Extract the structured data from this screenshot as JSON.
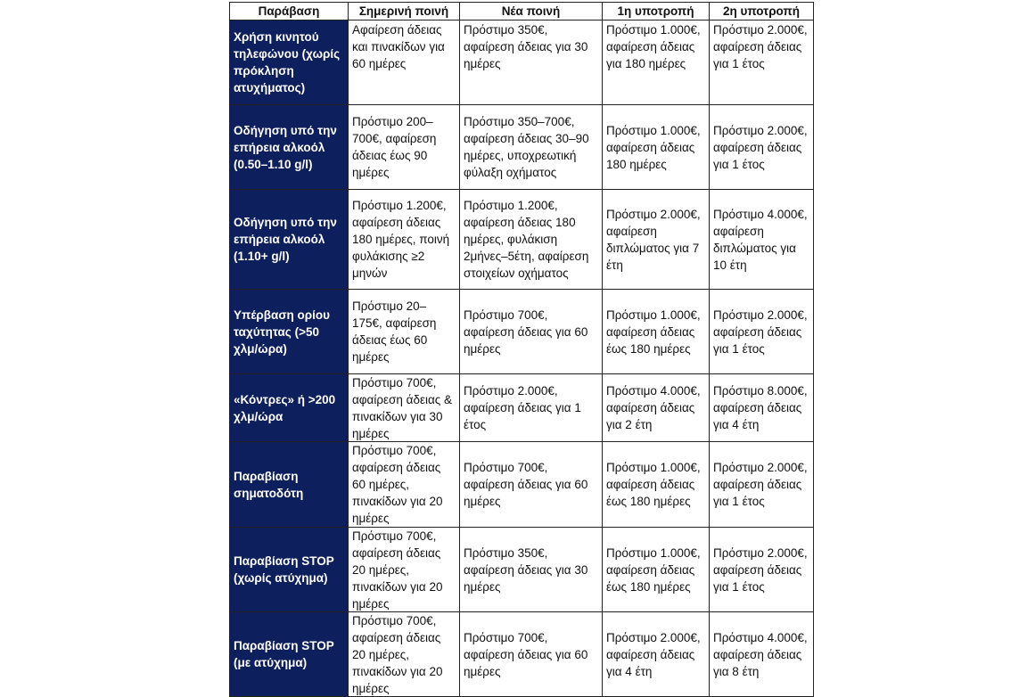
{
  "table": {
    "header": [
      "Παράβαση",
      "Σημερινή ποινή",
      "Νέα ποινή",
      "1η υποτροπή",
      "2η υποτροπή"
    ],
    "rows": [
      [
        "Χρήση κινητού τηλεφώνου (χωρίς πρόκληση ατυχήματος)",
        "Αφαίρεση άδειας και πινακίδων για 60 ημέρες",
        "Πρόστιμο 350€, αφαίρεση άδειας για 30 ημέρες",
        "Πρόστιμο 1.000€, αφαίρεση άδειας για 180 ημέρες",
        "Πρόστιμο 2.000€, αφαίρεση άδειας για 1 έτος"
      ],
      [
        "Οδήγηση υπό την επήρεια αλκοόλ (0.50–1.10 g/l)",
        "Πρόστιμο 200–700€, αφαίρεση άδειας έως 90 ημέρες",
        "Πρόστιμο 350–700€, αφαίρεση άδειας 30–90 ημέρες, υποχρεωτική φύλαξη οχήματος",
        "Πρόστιμο 1.000€, αφαίρεση άδειας 180 ημέρες",
        "Πρόστιμο 2.000€, αφαίρεση άδειας για 1 έτος"
      ],
      [
        "Οδήγηση υπό την επήρεια αλκοόλ (1.10+ g/l)",
        "Πρόστιμο 1.200€, αφαίρεση άδειας 180 ημέρες, ποινή φυλάκισης ≥2 μηνών",
        "Πρόστιμο 1.200€, αφαίρεση άδειας 180 ημέρες, φυλάκιση 2μήνες–5έτη, αφαίρεση στοιχείων οχήματος",
        "Πρόστιμο 2.000€, αφαίρεση διπλώματος για 7 έτη",
        "Πρόστιμο 4.000€, αφαίρεση διπλώματος για 10 έτη"
      ],
      [
        "Υπέρβαση ορίου ταχύτητας (>50 χλμ/ώρα)",
        "Πρόστιμο 20–175€, αφαίρεση άδειας έως 60 ημέρες",
        "Πρόστιμο 700€, αφαίρεση άδειας για 60 ημέρες",
        "Πρόστιμο 1.000€, αφαίρεση άδειας έως 180 ημέρες",
        "Πρόστιμο 2.000€, αφαίρεση άδειας για 1 έτος"
      ],
      [
        "«Κόντρες» ή >200 χλμ/ώρα",
        "Πρόστιμο 700€, αφαίρεση άδειας & πινακίδων για 30 ημέρες",
        "Πρόστιμο 2.000€, αφαίρεση άδειας για 1 έτος",
        "Πρόστιμο 4.000€, αφαίρεση άδειας για 2 έτη",
        "Πρόστιμο 8.000€, αφαίρεση άδειας για 4 έτη"
      ],
      [
        "Παραβίαση σηματοδότη",
        "Πρόστιμο 700€, αφαίρεση άδειας 60 ημέρες, πινακίδων για 20 ημέρες",
        "Πρόστιμο 700€, αφαίρεση άδειας για 60 ημέρες",
        "Πρόστιμο 1.000€, αφαίρεση άδειας έως 180 ημέρες",
        "Πρόστιμο 2.000€, αφαίρεση άδειας για 1 έτος"
      ],
      [
        "Παραβίαση STOP (χωρίς ατύχημα)",
        "Πρόστιμο 700€, αφαίρεση άδειας 20 ημέρες, πινακίδων για 20 ημέρες",
        "Πρόστιμο 350€, αφαίρεση άδειας για 30 ημέρες",
        "Πρόστιμο 1.000€, αφαίρεση άδειας έως 180 ημέρες",
        "Πρόστιμο 2.000€, αφαίρεση άδειας για 1 έτος"
      ],
      [
        "Παραβίαση STOP (με ατύχημα)",
        "Πρόστιμο 700€, αφαίρεση άδειας 20 ημέρες, πινακίδων για 20 ημέρες",
        "Πρόστιμο 700€, αφαίρεση άδειας για 60 ημέρες",
        "Πρόστιμο 2.000€, αφαίρεση άδειας για 4 έτη",
        "Πρόστιμο 4.000€, αφαίρεση άδειας για 8 έτη"
      ]
    ]
  }
}
